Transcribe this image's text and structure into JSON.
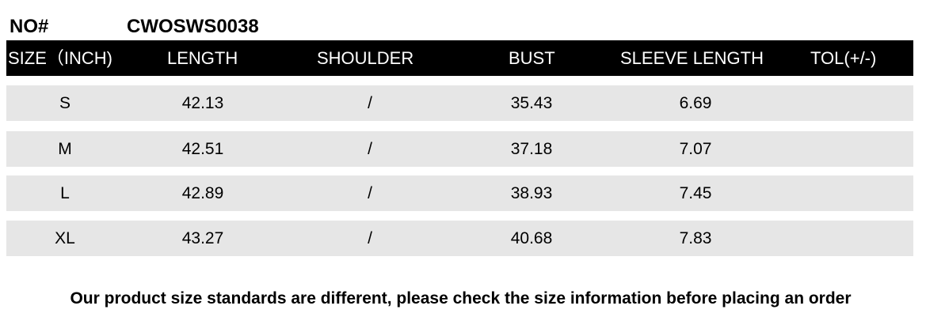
{
  "product": {
    "label": "NO#",
    "code": "CWOSWS0038"
  },
  "table": {
    "headers": [
      "SIZE（INCH)",
      "LENGTH",
      "SHOULDER",
      "BUST",
      "SLEEVE LENGTH",
      "TOL(+/-)"
    ],
    "rows": [
      [
        "S",
        "42.13",
        "/",
        "35.43",
        "6.69",
        ""
      ],
      [
        "M",
        "42.51",
        "/",
        "37.18",
        "7.07",
        ""
      ],
      [
        "L",
        "42.89",
        "/",
        "38.93",
        "7.45",
        ""
      ],
      [
        "XL",
        "43.27",
        "/",
        "40.68",
        "7.83",
        ""
      ]
    ]
  },
  "footer": "Our product size standards are different, please check the size information before placing an order"
}
